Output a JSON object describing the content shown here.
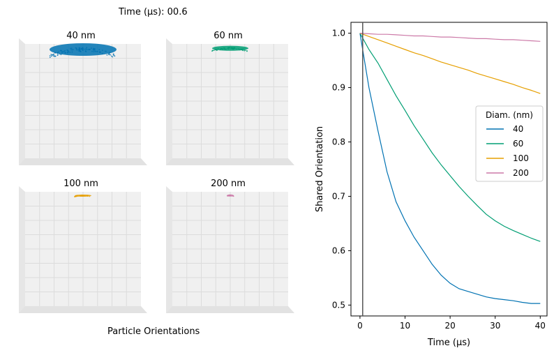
{
  "time_readout": {
    "label": "Time (µs):",
    "value": "00.6"
  },
  "left_caption": "Particle Orientations",
  "panels": [
    {
      "title": "40 nm",
      "color": "#0072b2"
    },
    {
      "title": "60 nm",
      "color": "#009e73"
    },
    {
      "title": "100 nm",
      "color": "#e69f00"
    },
    {
      "title": "200 nm",
      "color": "#cc79a7"
    }
  ],
  "chart_data": {
    "type": "line",
    "xlabel": "Time (µs)",
    "ylabel": "Shared Orientation",
    "xlim": [
      -2,
      41.5
    ],
    "ylim": [
      0.48,
      1.02
    ],
    "xticks": [
      0,
      10,
      20,
      30,
      40
    ],
    "yticks": [
      0.5,
      0.6,
      0.7,
      0.8,
      0.9,
      1.0
    ],
    "current_time_marker": 0.6,
    "legend": {
      "title": "Diam. (nm)",
      "placement": "center-right"
    },
    "x": [
      0,
      2,
      4,
      6,
      8,
      10,
      12,
      14,
      16,
      18,
      20,
      22,
      24,
      26,
      28,
      30,
      32,
      34,
      36,
      38,
      40
    ],
    "series": [
      {
        "name": "40",
        "color": "#0072b2",
        "values": [
          1.0,
          0.9,
          0.82,
          0.745,
          0.69,
          0.655,
          0.625,
          0.6,
          0.575,
          0.555,
          0.54,
          0.53,
          0.525,
          0.52,
          0.515,
          0.512,
          0.51,
          0.508,
          0.505,
          0.503,
          0.503
        ]
      },
      {
        "name": "60",
        "color": "#009e73",
        "values": [
          1.0,
          0.97,
          0.945,
          0.915,
          0.885,
          0.858,
          0.83,
          0.805,
          0.78,
          0.758,
          0.738,
          0.718,
          0.7,
          0.683,
          0.667,
          0.655,
          0.645,
          0.637,
          0.63,
          0.623,
          0.617
        ]
      },
      {
        "name": "100",
        "color": "#e69f00",
        "values": [
          1.0,
          0.994,
          0.988,
          0.982,
          0.976,
          0.97,
          0.964,
          0.959,
          0.953,
          0.947,
          0.942,
          0.937,
          0.932,
          0.926,
          0.921,
          0.916,
          0.911,
          0.906,
          0.9,
          0.895,
          0.889
        ]
      },
      {
        "name": "200",
        "color": "#cc79a7",
        "values": [
          1.0,
          0.999,
          0.998,
          0.998,
          0.997,
          0.996,
          0.995,
          0.995,
          0.994,
          0.993,
          0.993,
          0.992,
          0.991,
          0.99,
          0.99,
          0.989,
          0.988,
          0.988,
          0.987,
          0.986,
          0.985
        ]
      }
    ]
  }
}
